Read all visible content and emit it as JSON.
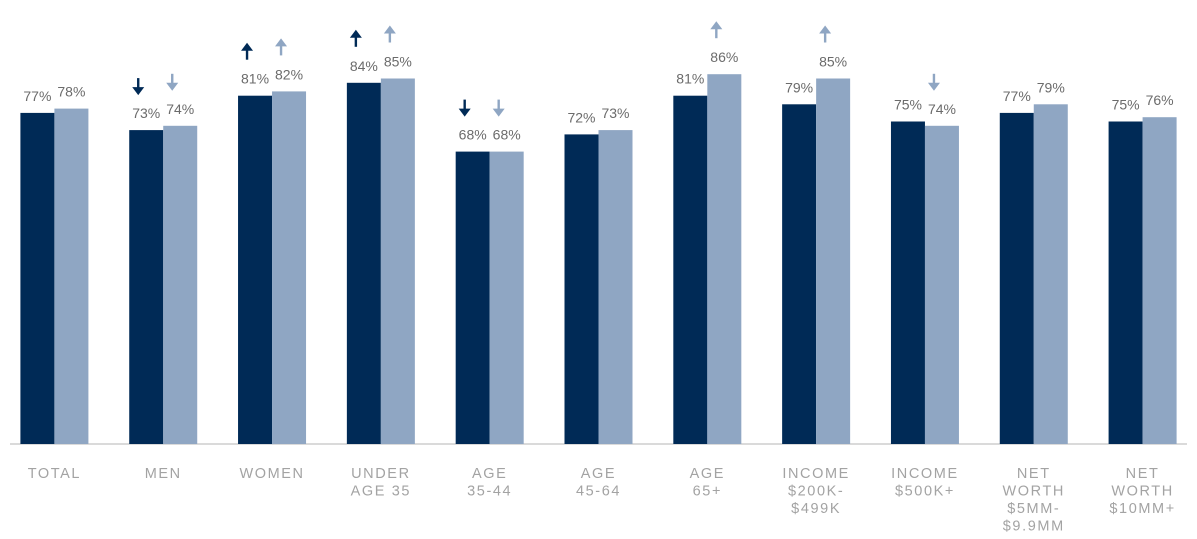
{
  "chart_data": {
    "type": "bar",
    "title": "",
    "xlabel": "",
    "ylabel": "",
    "ylim": [
      0,
      100
    ],
    "grid": false,
    "legend": "none",
    "value_suffix": "%",
    "categories": [
      [
        "TOTAL"
      ],
      [
        "MEN"
      ],
      [
        "WOMEN"
      ],
      [
        "UNDER",
        "AGE 35"
      ],
      [
        "AGE",
        "35-44"
      ],
      [
        "AGE",
        "45-64"
      ],
      [
        "AGE",
        "65+"
      ],
      [
        "INCOME",
        "$200K-",
        "$499K"
      ],
      [
        "INCOME",
        "$500K+"
      ],
      [
        "NET",
        "WORTH",
        "$5MM-",
        "$9.9MM"
      ],
      [
        "NET",
        "WORTH",
        "$10MM+"
      ]
    ],
    "series": [
      {
        "color": "#002a56",
        "values": [
          77,
          73,
          81,
          84,
          68,
          72,
          81,
          79,
          75,
          77,
          75
        ],
        "trend": [
          "",
          "down",
          "up",
          "up",
          "down",
          "",
          "",
          "",
          "",
          "",
          ""
        ]
      },
      {
        "color": "#8fa6c3",
        "values": [
          78,
          74,
          82,
          85,
          68,
          73,
          86,
          85,
          74,
          79,
          76
        ],
        "trend": [
          "",
          "down",
          "up",
          "up",
          "down",
          "",
          "up",
          "up",
          "down",
          "",
          ""
        ]
      }
    ]
  }
}
